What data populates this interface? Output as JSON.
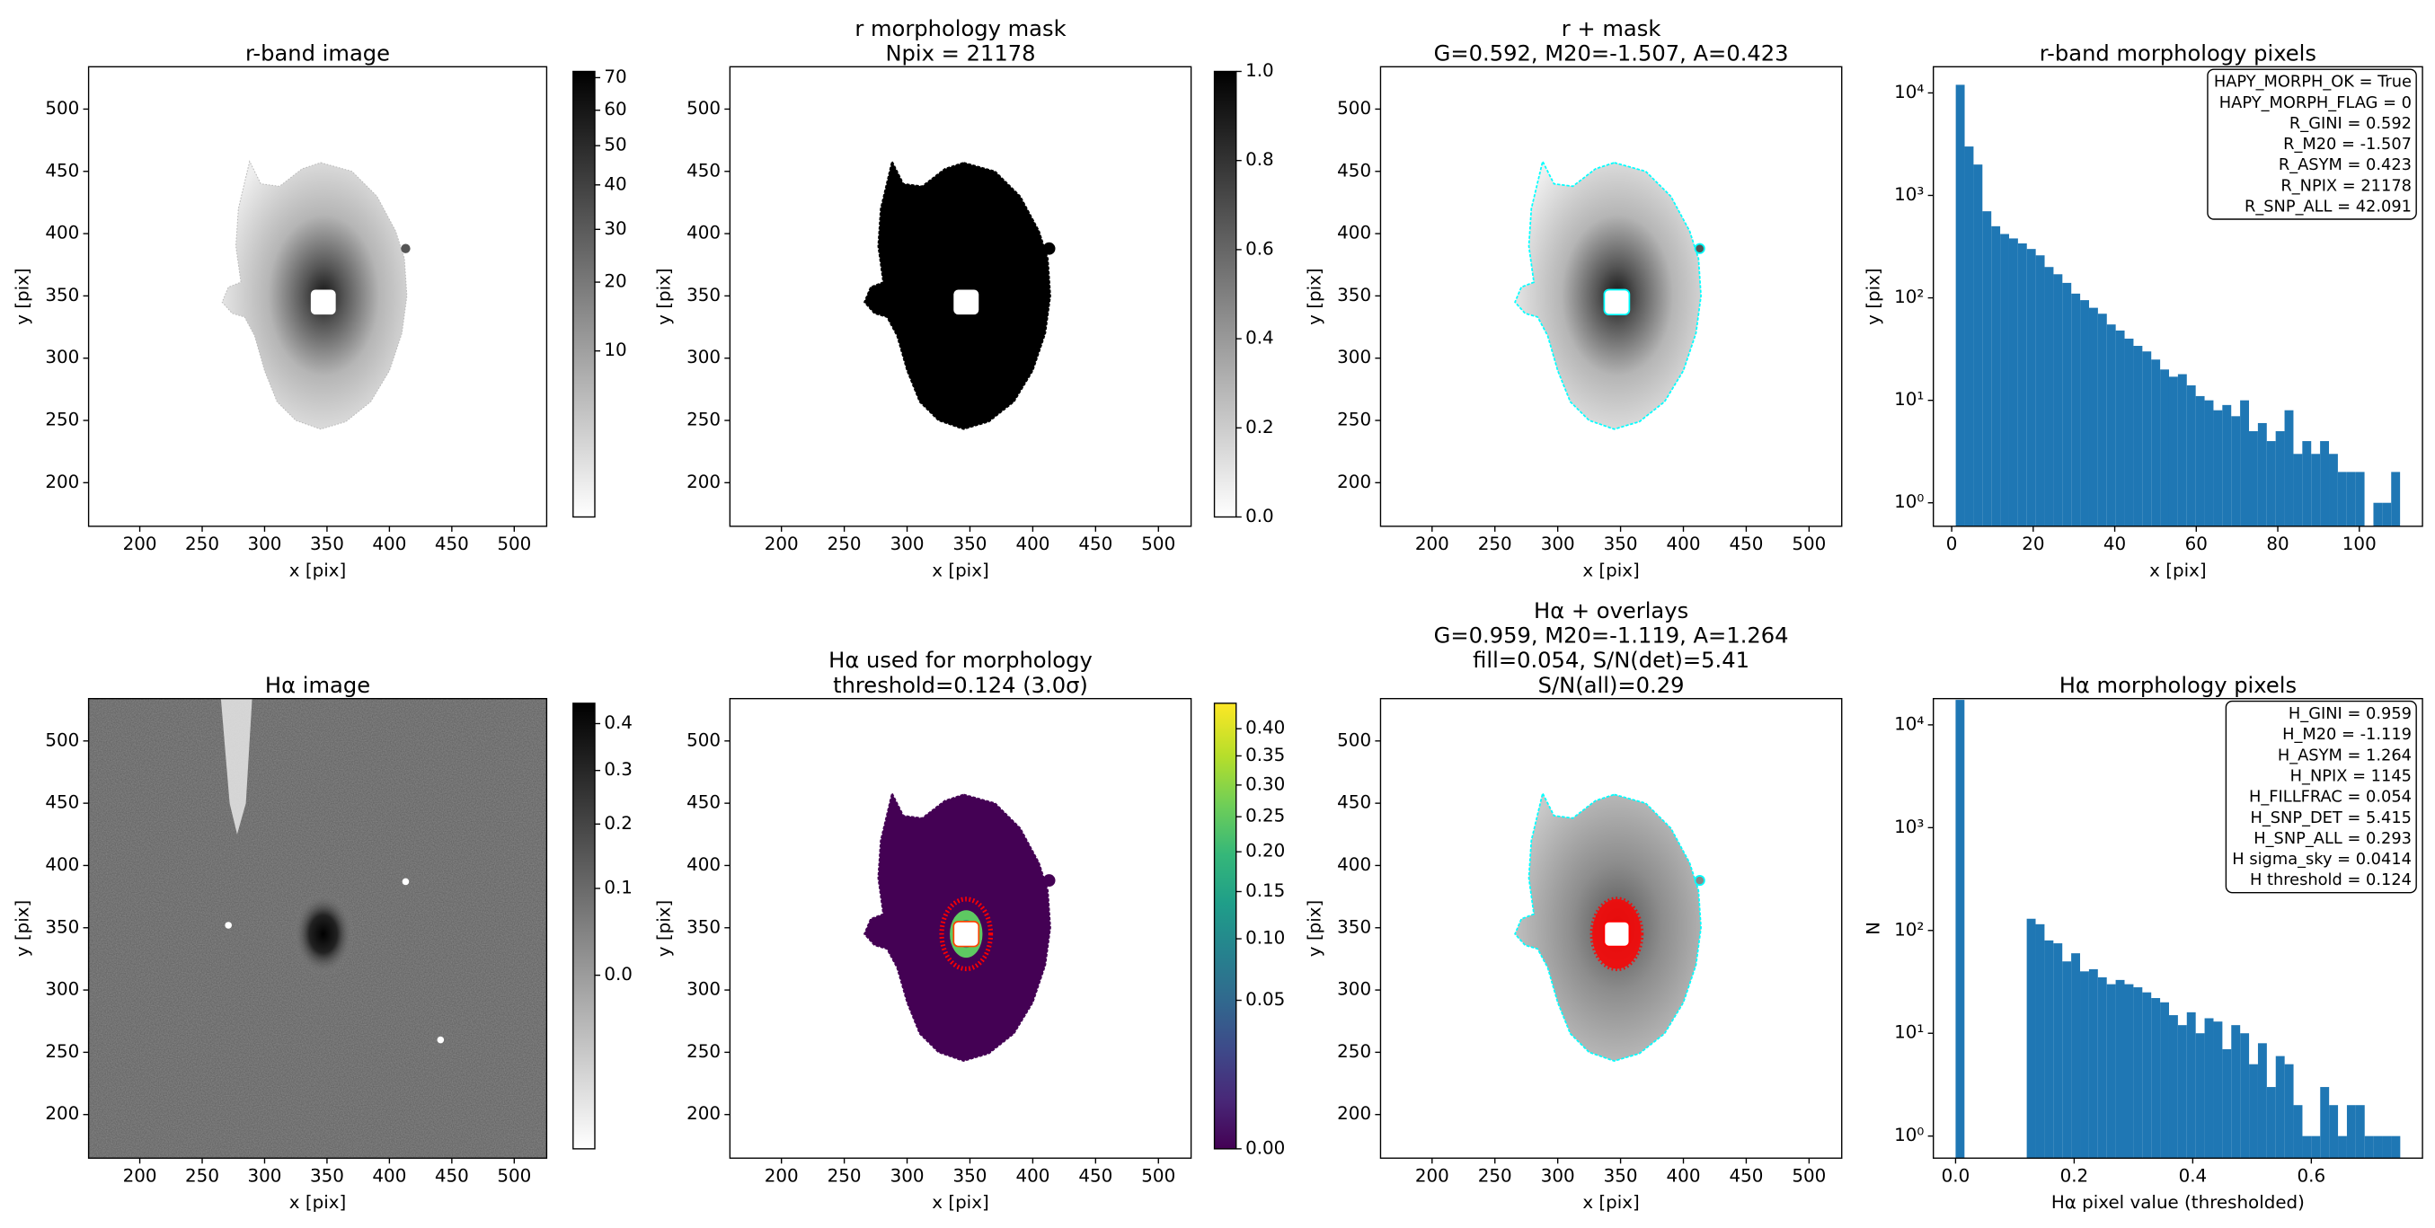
{
  "chart_data": [
    {
      "type": "image",
      "title": [
        "r-band image"
      ],
      "xlabel": "x [pix]",
      "ylabel": "y [pix]",
      "xlim": [
        159,
        526
      ],
      "ylim": [
        165,
        534
      ],
      "xticks": [
        200,
        250,
        300,
        350,
        400,
        450,
        500
      ],
      "yticks": [
        200,
        250,
        300,
        350,
        400,
        450,
        500
      ],
      "colorbar": {
        "scale": "sqrt",
        "lim": [
          0,
          72
        ],
        "ticks": [
          10,
          20,
          30,
          40,
          50,
          60,
          70
        ],
        "cmap": "gray_r"
      }
    },
    {
      "type": "image",
      "title": [
        "r morphology mask",
        "Npix = 21178"
      ],
      "xlabel": "x [pix]",
      "ylabel": "y [pix]",
      "xlim": [
        159,
        526
      ],
      "ylim": [
        165,
        534
      ],
      "xticks": [
        200,
        250,
        300,
        350,
        400,
        450,
        500
      ],
      "yticks": [
        200,
        250,
        300,
        350,
        400,
        450,
        500
      ],
      "colorbar": {
        "scale": "linear",
        "lim": [
          0,
          1
        ],
        "ticks": [
          {
            "value": 0,
            "label": "0.0"
          },
          0.2,
          0.4,
          0.6,
          0.8,
          {
            "value": 1,
            "label": "1.0"
          }
        ],
        "cmap": "gray_r"
      }
    },
    {
      "type": "image",
      "title": [
        "r + mask",
        "G=0.592, M20=-1.507, A=0.423"
      ],
      "xlabel": "x [pix]",
      "ylabel": "y [pix]",
      "xlim": [
        159,
        526
      ],
      "ylim": [
        165,
        534
      ],
      "xticks": [
        200,
        250,
        300,
        350,
        400,
        450,
        500
      ],
      "yticks": [
        200,
        250,
        300,
        350,
        400,
        450,
        500
      ]
    },
    {
      "type": "histogram",
      "title": [
        "r-band morphology pixels"
      ],
      "xlabel": "x [pix]",
      "ylabel": "y [pix]",
      "color": "#1f77b4",
      "bins": [
        1,
        3.18,
        5.36,
        7.54,
        9.72,
        11.9,
        14.08,
        16.26,
        18.44,
        20.62,
        22.8,
        24.98,
        27.16,
        29.34,
        31.52,
        33.7,
        35.88,
        38.06,
        40.24,
        42.42,
        44.6,
        46.78,
        48.96,
        51.14,
        53.32,
        55.5,
        57.68,
        59.86,
        62.04,
        64.22,
        66.4,
        68.58,
        70.76,
        72.94,
        75.12,
        77.3,
        79.48,
        81.66,
        83.84,
        86.02,
        88.2,
        90.38,
        92.56,
        94.74,
        96.92,
        99.1,
        101.28,
        103.46,
        105.64,
        107.82,
        110
      ],
      "values": [
        12000,
        3000,
        2000,
        700,
        500,
        420,
        380,
        340,
        300,
        260,
        200,
        170,
        140,
        110,
        95,
        80,
        70,
        55,
        48,
        40,
        34,
        30,
        25,
        20,
        17,
        18,
        14,
        11,
        10,
        8,
        9,
        7,
        10,
        5,
        6,
        4,
        5,
        8,
        3,
        4,
        3,
        4,
        3,
        2,
        2,
        2,
        0,
        1,
        1,
        2
      ],
      "xlim": [
        -4.5,
        115.5
      ],
      "xticks": [
        0,
        20,
        40,
        60,
        80,
        100
      ],
      "yscale": "log",
      "ylim": [
        0.59,
        18000
      ],
      "yticks": [
        {
          "value": 1,
          "label": "10⁰"
        },
        {
          "value": 10,
          "label": "10¹"
        },
        {
          "value": 100,
          "label": "10²"
        },
        {
          "value": 1000,
          "label": "10³"
        },
        {
          "value": 10000,
          "label": "10⁴"
        }
      ],
      "annotation": [
        "HAPY_MORPH_OK = True",
        "HAPY_MORPH_FLAG = 0",
        "R_GINI = 0.592",
        "R_M20 = -1.507",
        "R_ASYM = 0.423",
        "R_NPIX = 21178",
        "R_SNP_ALL = 42.091"
      ]
    },
    {
      "type": "image",
      "title": [
        "Hα image"
      ],
      "xlabel": "x [pix]",
      "ylabel": "y [pix]",
      "xlim": [
        159,
        526
      ],
      "ylim": [
        165,
        534
      ],
      "xticks": [
        200,
        250,
        300,
        350,
        400,
        450,
        500
      ],
      "yticks": [
        200,
        250,
        300,
        350,
        400,
        450,
        500
      ],
      "colorbar": {
        "scale": "sqrt",
        "lim": [
          -0.08,
          0.447
        ],
        "ticks": [
          {
            "value": 0,
            "label": "0.0"
          },
          0.1,
          0.2,
          0.3,
          0.4
        ],
        "cmap": "gray_r"
      }
    },
    {
      "type": "image",
      "title": [
        "Hα used for morphology",
        "threshold=0.124 (3.0σ)"
      ],
      "xlabel": "x [pix]",
      "ylabel": "y [pix]",
      "xlim": [
        159,
        526
      ],
      "ylim": [
        165,
        534
      ],
      "xticks": [
        200,
        250,
        300,
        350,
        400,
        450,
        500
      ],
      "yticks": [
        200,
        250,
        300,
        350,
        400,
        450,
        500
      ],
      "colorbar": {
        "scale": "sqrt",
        "lim": [
          0,
          0.45
        ],
        "ticks": [
          {
            "value": 0,
            "label": "0.00"
          },
          0.05,
          {
            "value": 0.1,
            "label": "0.10"
          },
          0.15,
          {
            "value": 0.2,
            "label": "0.20"
          },
          0.25,
          {
            "value": 0.3,
            "label": "0.30"
          },
          0.35,
          {
            "value": 0.4,
            "label": "0.40"
          }
        ],
        "cmap": "viridis"
      }
    },
    {
      "type": "image",
      "title": [
        "Hα + overlays",
        "G=0.959, M20=-1.119, A=1.264",
        "fill=0.054, S/N(det)=5.41",
        "S/N(all)=0.29"
      ],
      "xlabel": "x [pix]",
      "ylabel": "y [pix]",
      "xlim": [
        159,
        526
      ],
      "ylim": [
        165,
        534
      ],
      "xticks": [
        200,
        250,
        300,
        350,
        400,
        450,
        500
      ],
      "yticks": [
        200,
        250,
        300,
        350,
        400,
        450,
        500
      ]
    },
    {
      "type": "histogram",
      "title": [
        "Hα morphology pixels"
      ],
      "xlabel": "Hα pixel value (thresholded)",
      "ylabel": "N",
      "color": "#1f77b4",
      "bins": [
        0,
        0.015,
        0.03,
        0.045,
        0.06,
        0.075,
        0.09,
        0.105,
        0.12,
        0.135,
        0.15,
        0.165,
        0.18,
        0.195,
        0.21,
        0.225,
        0.24,
        0.255,
        0.27,
        0.285,
        0.3,
        0.315,
        0.33,
        0.345,
        0.36,
        0.375,
        0.39,
        0.405,
        0.42,
        0.435,
        0.45,
        0.465,
        0.48,
        0.495,
        0.51,
        0.525,
        0.54,
        0.555,
        0.57,
        0.585,
        0.6,
        0.615,
        0.63,
        0.645,
        0.66,
        0.675,
        0.69,
        0.705,
        0.72,
        0.735,
        0.75
      ],
      "values": [
        17500,
        0,
        0,
        0,
        0,
        0,
        0,
        0,
        130,
        115,
        80,
        75,
        50,
        60,
        40,
        42,
        35,
        30,
        33,
        30,
        28,
        25,
        22,
        20,
        15,
        12,
        16,
        10,
        14,
        13,
        7,
        12,
        10,
        5,
        8,
        3,
        6,
        5,
        2,
        1,
        1,
        3,
        2,
        1,
        2,
        2,
        1,
        1,
        1,
        1
      ],
      "xlim": [
        -0.0375,
        0.7875
      ],
      "xticks": [
        {
          "value": 0,
          "label": "0.0"
        },
        0.2,
        0.4,
        0.6
      ],
      "yscale": "log",
      "ylim": [
        0.61,
        18000
      ],
      "yticks": [
        {
          "value": 1,
          "label": "10⁰"
        },
        {
          "value": 10,
          "label": "10¹"
        },
        {
          "value": 100,
          "label": "10²"
        },
        {
          "value": 1000,
          "label": "10³"
        },
        {
          "value": 10000,
          "label": "10⁴"
        }
      ],
      "annotation": [
        "H_GINI = 0.959",
        "H_M20 = -1.119",
        "H_ASYM = 1.264",
        "H_NPIX = 1145",
        "H_FILLFRAC = 0.054",
        "H_SNP_DET = 5.415",
        "H_SNP_ALL = 0.293",
        "H sigma_sky = 0.0414",
        "H threshold = 0.124"
      ]
    }
  ]
}
